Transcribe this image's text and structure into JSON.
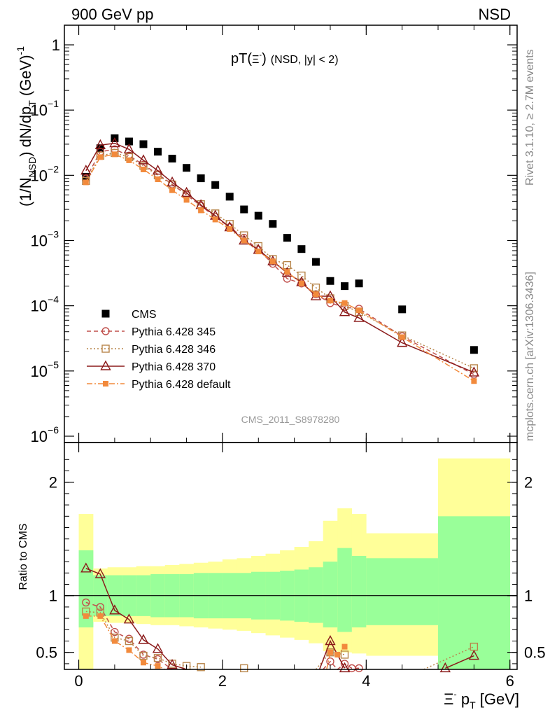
{
  "header": {
    "left": "900 GeV pp",
    "right": "NSD"
  },
  "side_labels": {
    "rivet": "Rivet 3.1.10, ≥ 2.7M events",
    "mcplots": "mcplots.cern.ch [arXiv:1306.3436]"
  },
  "chart_data": [
    {
      "type": "scatter",
      "panel": "main",
      "title_main": "pT(",
      "title_particle": "Ξ",
      "title_sup": "-",
      "title_close": ")",
      "title_rest": "(NSD, |y| < 2)",
      "ylabel_pre": "(1/N",
      "ylabel_sub": "NSD",
      "ylabel_post": ") dN/dp",
      "ylabel_sub2": "T",
      "ylabel_unit": "(GeV)",
      "ylabel_unit_sup": "-1",
      "yscale": "log",
      "xlim": [
        -0.2,
        6.1
      ],
      "ylim": [
        8e-07,
        2
      ],
      "ytick_values": [
        1,
        0.1,
        0.01,
        0.001,
        0.0001,
        1e-05,
        1e-06
      ],
      "ytick_labels": [
        {
          "base": "1",
          "exp": ""
        },
        {
          "base": "10",
          "exp": "−1"
        },
        {
          "base": "10",
          "exp": "−2"
        },
        {
          "base": "10",
          "exp": "−3"
        },
        {
          "base": "10",
          "exp": "−4"
        },
        {
          "base": "10",
          "exp": "−5"
        },
        {
          "base": "10",
          "exp": "−6"
        }
      ],
      "watermark": "CMS_2011_S8978280",
      "legend_placement": "lower-left",
      "series": [
        {
          "name": "CMS",
          "color": "#000000",
          "marker": "square-filled",
          "line": "none",
          "x": [
            0.1,
            0.3,
            0.5,
            0.7,
            0.9,
            1.1,
            1.3,
            1.5,
            1.7,
            1.9,
            2.1,
            2.3,
            2.5,
            2.7,
            2.9,
            3.1,
            3.3,
            3.5,
            3.7,
            3.9,
            4.5,
            5.5
          ],
          "y": [
            0.0095,
            0.026,
            0.037,
            0.033,
            0.03,
            0.023,
            0.018,
            0.013,
            0.009,
            0.0071,
            0.0047,
            0.003,
            0.0024,
            0.0018,
            0.0011,
            0.00074,
            0.00047,
            0.00024,
            0.0002,
            0.00022,
            8.8e-05,
            2.1e-05
          ]
        },
        {
          "name": "Pythia 6.428 345",
          "color": "#c0504d",
          "marker": "circle-open",
          "line": "dashed",
          "x": [
            0.1,
            0.3,
            0.5,
            0.7,
            0.9,
            1.1,
            1.3,
            1.5,
            1.7,
            1.9,
            2.1,
            2.3,
            2.5,
            2.7,
            2.9,
            3.1,
            3.3,
            3.5,
            3.7,
            3.9,
            4.5,
            5.5
          ],
          "y": [
            0.0089,
            0.023,
            0.025,
            0.02,
            0.0145,
            0.0104,
            0.0073,
            0.005,
            0.0034,
            0.0023,
            0.0016,
            0.0011,
            0.00072,
            0.00044,
            0.00026,
            0.00022,
            0.00015,
            0.00011,
            9.5e-05,
            9e-05,
            3.4e-05,
            8.8e-06
          ]
        },
        {
          "name": "Pythia 6.428 346",
          "color": "#b8864b",
          "marker": "square-open",
          "line": "dotted",
          "x": [
            0.1,
            0.3,
            0.5,
            0.7,
            0.9,
            1.1,
            1.3,
            1.5,
            1.7,
            1.9,
            2.1,
            2.3,
            2.5,
            2.7,
            2.9,
            3.1,
            3.3,
            3.5,
            3.7,
            3.9,
            4.5,
            5.5
          ],
          "y": [
            0.0082,
            0.02,
            0.022,
            0.019,
            0.014,
            0.01,
            0.0072,
            0.0052,
            0.0036,
            0.0026,
            0.0018,
            0.0012,
            0.00082,
            0.00052,
            0.00042,
            0.00029,
            0.00019,
            0.00013,
            0.0001,
            8e-05,
            3.5e-05,
            1.1e-05
          ]
        },
        {
          "name": "Pythia 6.428 370",
          "color": "#8b1a1a",
          "marker": "triangle-open",
          "line": "solid",
          "x": [
            0.1,
            0.3,
            0.5,
            0.7,
            0.9,
            1.1,
            1.3,
            1.5,
            1.7,
            1.9,
            2.1,
            2.3,
            2.5,
            2.7,
            2.9,
            3.1,
            3.3,
            3.5,
            3.7,
            3.9,
            4.5,
            5.5
          ],
          "y": [
            0.0118,
            0.029,
            0.031,
            0.025,
            0.017,
            0.0118,
            0.0078,
            0.0054,
            0.0035,
            0.0024,
            0.0016,
            0.001,
            0.00072,
            0.00048,
            0.00032,
            0.00023,
            0.00014,
            0.00014,
            8e-05,
            6.5e-05,
            2.7e-05,
            9.5e-06
          ]
        },
        {
          "name": "Pythia 6.428 default",
          "color": "#f28a3c",
          "marker": "square-filled-small",
          "line": "dashdot",
          "x": [
            0.1,
            0.3,
            0.5,
            0.7,
            0.9,
            1.1,
            1.3,
            1.5,
            1.7,
            1.9,
            2.1,
            2.3,
            2.5,
            2.7,
            2.9,
            3.1,
            3.3,
            3.5,
            3.7,
            3.9,
            4.5,
            5.5
          ],
          "y": [
            0.0078,
            0.019,
            0.021,
            0.017,
            0.0123,
            0.0087,
            0.0059,
            0.0042,
            0.0029,
            0.0021,
            0.0015,
            0.001,
            0.00068,
            0.00048,
            0.00033,
            0.00022,
            0.00015,
            0.00012,
            0.00011,
            8.5e-05,
            3.3e-05,
            7e-06
          ]
        }
      ]
    },
    {
      "type": "scatter",
      "panel": "ratio",
      "ylabel": "Ratio to CMS",
      "xlabel_particle": "Ξ",
      "xlabel_sup": "-",
      "xlabel_mid": " p",
      "xlabel_sub": "T",
      "xlabel_unit": " [GeV]",
      "xlim": [
        -0.2,
        6.1
      ],
      "ylim": [
        0.35,
        2.35
      ],
      "xticks": [
        0,
        2,
        4,
        6
      ],
      "xtick_labels": [
        "0",
        "2",
        "4",
        "6"
      ],
      "yticks": [
        0.5,
        1,
        2
      ],
      "ytick_labels": [
        "0.5",
        "1",
        "2"
      ],
      "bands": {
        "bin_edges": [
          0,
          0.2,
          0.4,
          0.6,
          0.8,
          1.0,
          1.2,
          1.4,
          1.6,
          1.8,
          2.0,
          2.2,
          2.4,
          2.6,
          2.8,
          3.0,
          3.2,
          3.4,
          3.6,
          3.8,
          4.0,
          5.0,
          6.0
        ],
        "inner_color": "#99ff99",
        "outer_color": "#ffff99",
        "inner_lo": [
          0.72,
          0.82,
          0.82,
          0.82,
          0.82,
          0.81,
          0.81,
          0.81,
          0.8,
          0.8,
          0.8,
          0.8,
          0.79,
          0.79,
          0.78,
          0.77,
          0.76,
          0.72,
          0.68,
          0.72,
          0.74,
          0.32
        ],
        "inner_hi": [
          1.4,
          1.18,
          1.18,
          1.18,
          1.18,
          1.19,
          1.19,
          1.19,
          1.2,
          1.2,
          1.2,
          1.2,
          1.21,
          1.21,
          1.22,
          1.23,
          1.25,
          1.3,
          1.42,
          1.35,
          1.33,
          1.7
        ],
        "outer_lo": [
          0.18,
          0.77,
          0.76,
          0.76,
          0.75,
          0.74,
          0.74,
          0.73,
          0.72,
          0.71,
          0.7,
          0.69,
          0.67,
          0.65,
          0.63,
          0.61,
          0.58,
          0.51,
          0.5,
          0.49,
          0.47,
          0.3
        ],
        "outer_hi": [
          1.72,
          1.24,
          1.25,
          1.25,
          1.26,
          1.26,
          1.27,
          1.28,
          1.29,
          1.3,
          1.32,
          1.33,
          1.35,
          1.37,
          1.4,
          1.43,
          1.48,
          1.66,
          1.77,
          1.72,
          1.55,
          2.21
        ]
      },
      "series": [
        {
          "name": "Pythia 6.428 345",
          "color": "#c0504d",
          "marker": "circle-open",
          "line": "dashed",
          "segments": [
            {
              "x": [
                0.1,
                0.3,
                0.5,
                0.7,
                0.9,
                1.1,
                1.3
              ],
              "y": [
                0.94,
                0.9,
                0.68,
                0.62,
                0.48,
                0.44,
                0.35
              ]
            },
            {
              "x": [
                3.4,
                3.5,
                3.6,
                3.7,
                3.8,
                3.9
              ],
              "y": [
                0.35,
                0.42,
                0.35,
                0.4,
                0.36,
                0.36
              ]
            }
          ]
        },
        {
          "name": "Pythia 6.428 346",
          "color": "#b8864b",
          "marker": "square-open",
          "line": "dotted",
          "segments": [
            {
              "x": [
                0.1,
                0.3,
                0.5,
                0.7,
                0.9,
                1.1,
                1.3,
                1.5,
                1.7
              ],
              "y": [
                0.86,
                0.85,
                0.63,
                0.6,
                0.47,
                0.45,
                0.4,
                0.38,
                0.37
              ]
            },
            {
              "x": [
                2.3
              ],
              "y": [
                0.36
              ]
            },
            {
              "x": [
                3.3,
                3.5,
                3.7
              ],
              "y": [
                0.34,
                0.5,
                0.48
              ]
            },
            {
              "x": [
                4.8,
                5.5
              ],
              "y": [
                0.35,
                0.55
              ]
            }
          ]
        },
        {
          "name": "Pythia 6.428 370",
          "color": "#8b1a1a",
          "marker": "triangle-open",
          "line": "solid",
          "segments": [
            {
              "x": [
                0.1,
                0.3,
                0.5,
                0.7,
                0.9,
                1.1,
                1.3,
                1.5
              ],
              "y": [
                1.24,
                1.19,
                0.87,
                0.79,
                0.61,
                0.53,
                0.39,
                0.35
              ]
            },
            {
              "x": [
                3.35,
                3.5,
                3.7
              ],
              "y": [
                0.35,
                0.6,
                0.36
              ]
            },
            {
              "x": [
                5.1,
                5.5
              ],
              "y": [
                0.36,
                0.47
              ]
            }
          ]
        },
        {
          "name": "Pythia 6.428 default",
          "color": "#f28a3c",
          "marker": "square-filled-small",
          "line": "dashdot",
          "segments": [
            {
              "x": [
                0.1,
                0.3,
                0.5,
                0.7,
                0.9,
                1.1,
                1.2
              ],
              "y": [
                0.82,
                0.82,
                0.6,
                0.52,
                0.41,
                0.38,
                0.35
              ]
            },
            {
              "x": [
                3.45,
                3.5,
                3.6,
                3.7
              ],
              "y": [
                0.35,
                0.5,
                0.48,
                0.55
              ]
            }
          ]
        }
      ]
    }
  ]
}
